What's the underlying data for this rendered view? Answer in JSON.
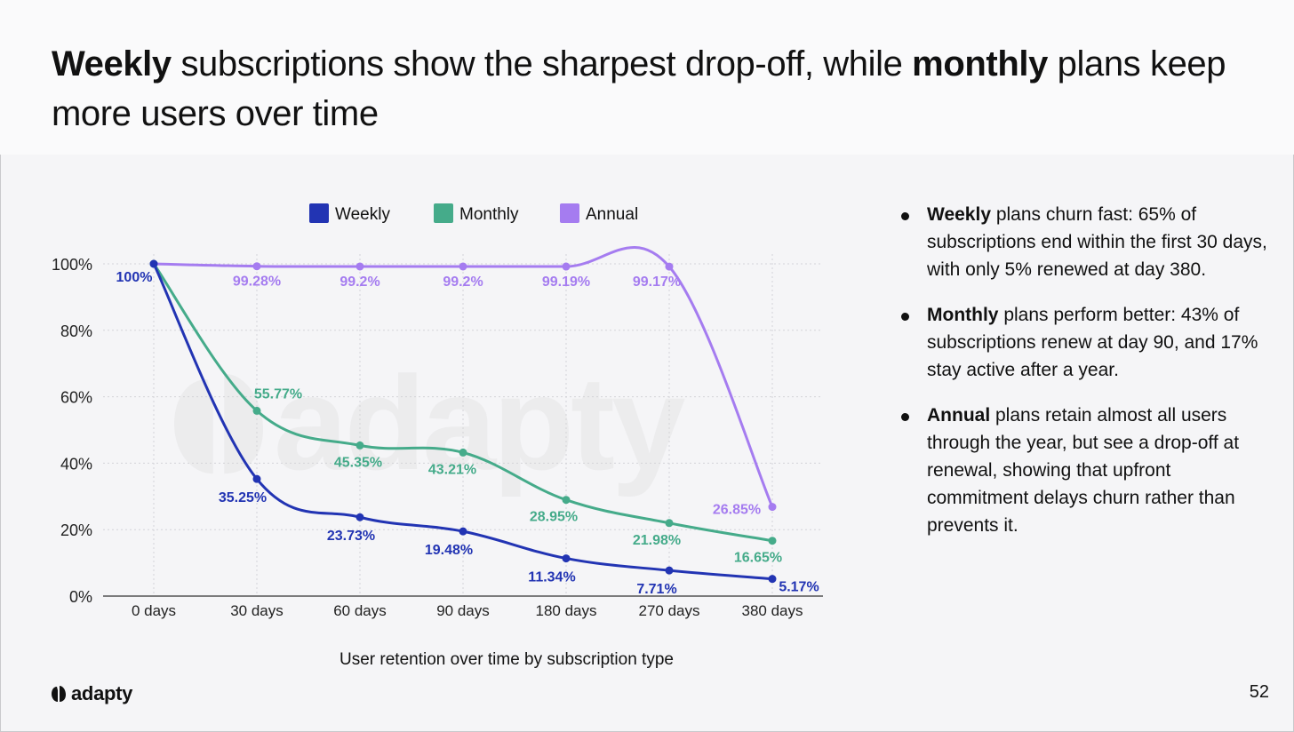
{
  "header": {
    "title_parts": [
      {
        "text": "Weekly",
        "bold": true
      },
      {
        "text": " subscriptions show the sharpest drop-off, while ",
        "bold": false
      },
      {
        "text": "monthly",
        "bold": true
      },
      {
        "text": " plans keep more users over time",
        "bold": false
      }
    ]
  },
  "chart_data": {
    "type": "line",
    "title": "User retention over time by subscription type",
    "categories": [
      "0 days",
      "30 days",
      "60 days",
      "90 days",
      "180 days",
      "270 days",
      "380 days"
    ],
    "ylim": [
      0,
      100
    ],
    "yticks": [
      "0%",
      "20%",
      "40%",
      "60%",
      "80%",
      "100%"
    ],
    "ytick_values": [
      0,
      20,
      40,
      60,
      80,
      100
    ],
    "grid": true,
    "legend_position": "top",
    "series": [
      {
        "name": "Weekly",
        "color": "#2234b3",
        "values": [
          100,
          35.25,
          23.73,
          19.48,
          11.34,
          7.71,
          5.17
        ],
        "labels": [
          "100%",
          "35.25%",
          "23.73%",
          "19.48%",
          "11.34%",
          "7.71%",
          "5.17%"
        ]
      },
      {
        "name": "Monthly",
        "color": "#45ab8a",
        "values": [
          100,
          55.77,
          45.35,
          43.21,
          28.95,
          21.98,
          16.65
        ],
        "labels": [
          "",
          "55.77%",
          "45.35%",
          "43.21%",
          "28.95%",
          "21.98%",
          "16.65%"
        ]
      },
      {
        "name": "Annual",
        "color": "#a57cf0",
        "values": [
          100,
          99.28,
          99.2,
          99.2,
          99.19,
          99.17,
          26.85
        ],
        "labels": [
          "",
          "99.28%",
          "99.2%",
          "99.2%",
          "99.19%",
          "99.17%",
          "26.85%"
        ]
      }
    ]
  },
  "bullets": [
    {
      "bold": "Weekly",
      "text": " plans churn fast: 65% of subscriptions end within the first 30 days, with only 5% renewed at day 380."
    },
    {
      "bold": "Monthly",
      "text": " plans perform better: 43% of subscriptions renew at day 90, and 17% stay active after a year."
    },
    {
      "bold": "Annual",
      "text": " plans retain almost all users through the year, but see a drop-off at renewal, showing that upfront commitment delays churn rather than prevents it."
    }
  ],
  "footer": {
    "logo_text": "adapty",
    "page_number": "52"
  },
  "watermark": {
    "text": "adapty"
  }
}
